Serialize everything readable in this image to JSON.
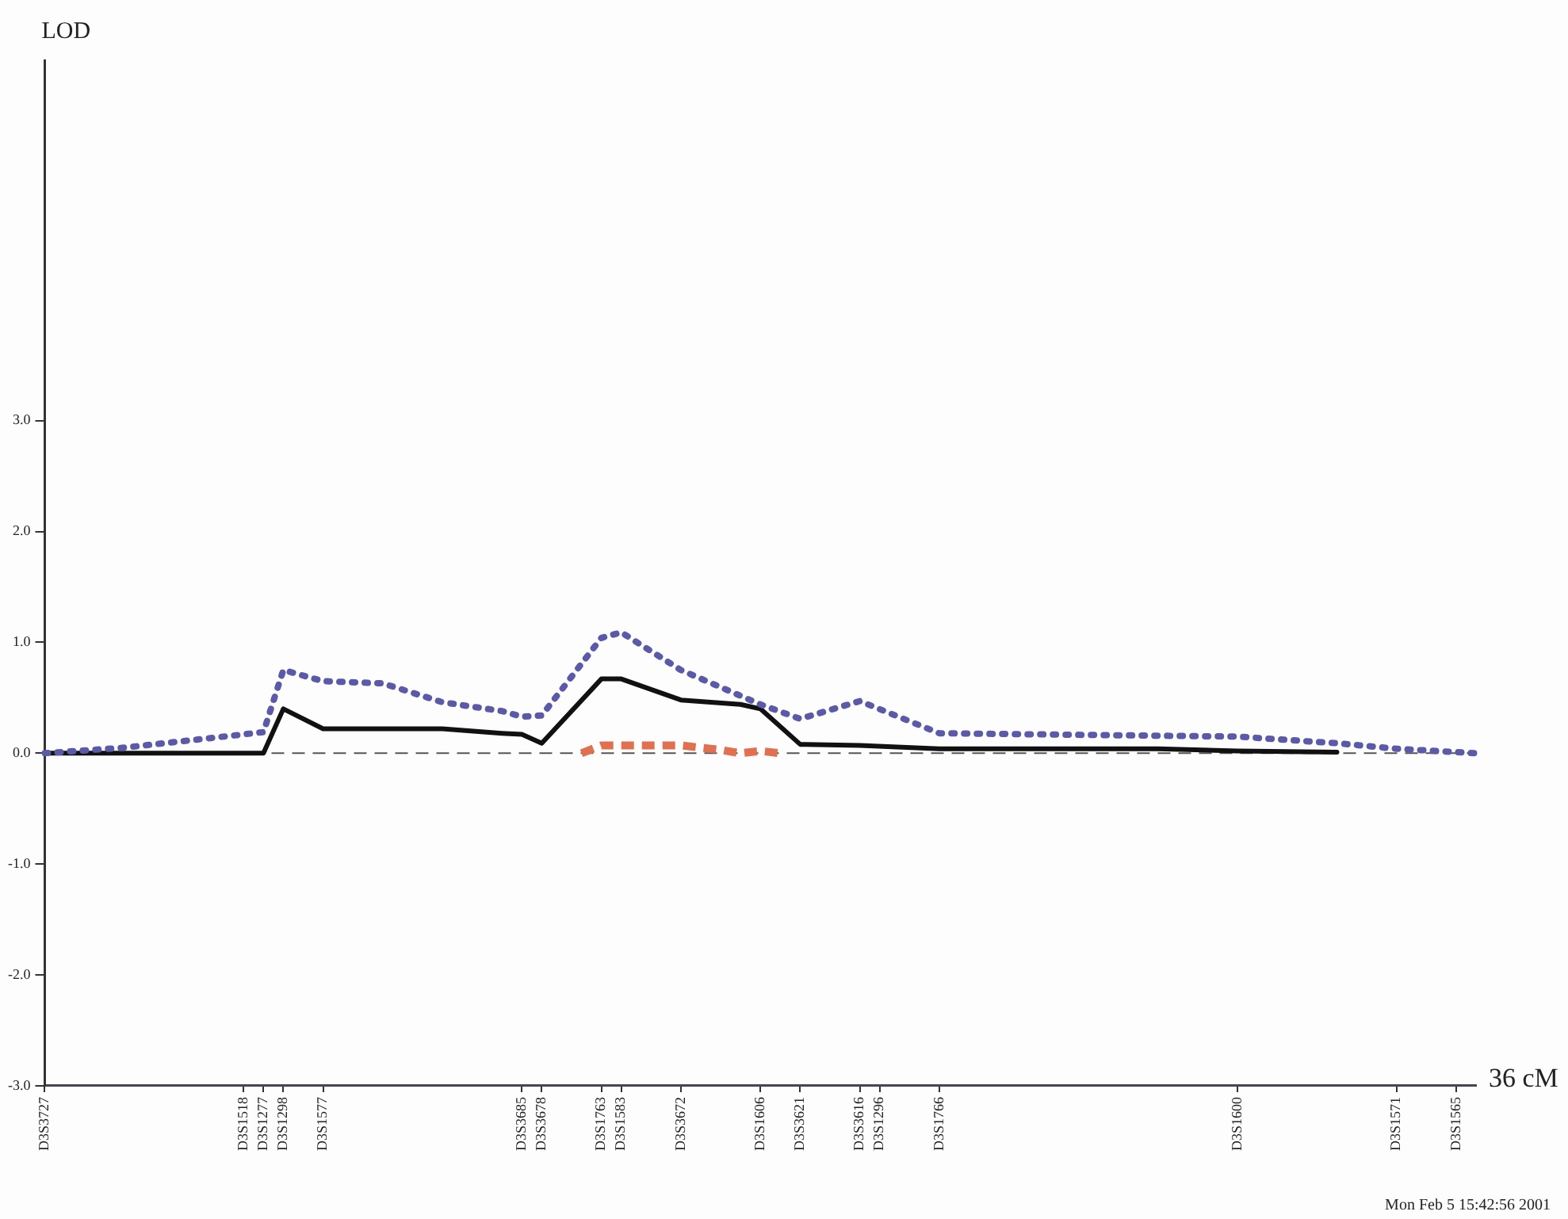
{
  "chart_data": {
    "type": "line",
    "ylabel": "LOD",
    "xlabel": "36 cM",
    "categories": [
      "D3S3727",
      null,
      null,
      null,
      null,
      null,
      null,
      null,
      null,
      null,
      "D3S1518",
      "D3S1277",
      "D3S1298",
      null,
      "D3S1577",
      null,
      null,
      null,
      null,
      null,
      null,
      null,
      null,
      null,
      "D3S3685",
      "D3S3678",
      null,
      null,
      "D3S1763",
      "D3S1583",
      null,
      null,
      "D3S3672",
      null,
      null,
      null,
      "D3S1606",
      null,
      "D3S3621",
      null,
      null,
      "D3S3616",
      "D3S1296",
      null,
      null,
      "D3S1766",
      null,
      null,
      null,
      null,
      null,
      null,
      null,
      null,
      null,
      null,
      null,
      null,
      null,
      null,
      "D3S1600",
      null,
      null,
      null,
      null,
      null,
      null,
      null,
      "D3S1571",
      null,
      null,
      "D3S1565",
      null
    ],
    "ylim": [
      -3,
      6.25
    ],
    "yticks": [
      {
        "value": -3,
        "label": "-3.0"
      },
      {
        "value": -2,
        "label": "-2.0"
      },
      {
        "value": -1,
        "label": "-1.0"
      },
      {
        "value": 0,
        "label": "0.0"
      },
      {
        "value": 1,
        "label": "1.0"
      },
      {
        "value": 2,
        "label": "2.0"
      },
      {
        "value": 3,
        "label": "3.0"
      }
    ],
    "grid": false,
    "legend": false,
    "marker": "none",
    "series": [
      {
        "color": "#5a5aa8",
        "line_style": "dotted",
        "values": [
          0,
          null,
          null,
          null,
          0.05,
          null,
          null,
          null,
          null,
          null,
          null,
          0.19,
          0.75,
          null,
          0.65,
          null,
          null,
          0.63,
          null,
          null,
          0.46,
          null,
          null,
          0.38,
          0.33,
          0.34,
          null,
          null,
          1.04,
          1.09,
          null,
          null,
          0.75,
          null,
          null,
          null,
          0.44,
          null,
          0.31,
          null,
          null,
          0.47,
          null,
          null,
          null,
          0.18,
          null,
          null,
          null,
          null,
          null,
          null,
          null,
          null,
          null,
          null,
          null,
          null,
          null,
          null,
          0.15,
          null,
          null,
          null,
          null,
          0.09,
          null,
          null,
          0.04,
          null,
          null,
          null,
          0
        ]
      },
      {
        "color": "#111111",
        "line_style": "solid",
        "values": [
          0,
          null,
          null,
          null,
          null,
          null,
          null,
          null,
          null,
          null,
          0,
          0,
          0.4,
          null,
          0.22,
          null,
          null,
          null,
          null,
          null,
          0.22,
          null,
          null,
          0.18,
          0.17,
          0.09,
          null,
          null,
          0.67,
          0.67,
          null,
          null,
          0.48,
          null,
          null,
          0.44,
          0.4,
          null,
          0.08,
          null,
          null,
          0.07,
          null,
          null,
          null,
          0.04,
          null,
          null,
          null,
          null,
          null,
          null,
          null,
          null,
          null,
          null,
          0.04,
          null,
          null,
          null,
          0.02,
          null,
          null,
          null,
          null,
          0.01,
          null,
          null,
          null,
          null,
          null,
          null,
          null
        ]
      },
      {
        "color": "#e07050",
        "line_style": "dashed",
        "values": [
          null,
          null,
          null,
          null,
          null,
          null,
          null,
          null,
          null,
          null,
          null,
          null,
          null,
          null,
          null,
          null,
          null,
          null,
          null,
          null,
          null,
          null,
          null,
          null,
          null,
          null,
          null,
          0,
          0.07,
          null,
          0.07,
          null,
          0.07,
          null,
          0.03,
          0,
          0.02,
          0,
          null,
          null,
          null,
          null,
          null,
          null,
          null,
          null,
          null,
          null,
          null,
          null,
          null,
          null,
          null,
          null,
          null,
          null,
          null,
          null,
          null,
          null,
          null,
          null,
          null,
          null,
          null,
          null,
          null,
          null,
          null,
          null,
          null,
          null,
          null
        ]
      }
    ],
    "ref_lines": [
      {
        "axis": "y",
        "value": 0,
        "color": "#555555",
        "line_style": "dashed"
      }
    ],
    "annotations": [
      "Mon Feb 5 15:42:56 2001"
    ]
  }
}
